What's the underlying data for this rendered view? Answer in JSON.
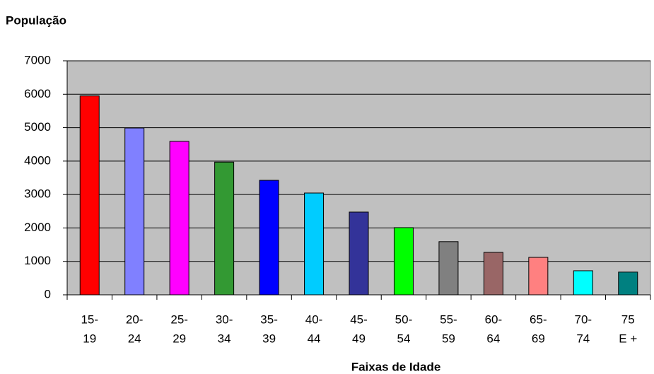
{
  "chart_data": {
    "type": "bar",
    "title": "População",
    "x_label": "Faixas de Idade",
    "categories": [
      [
        "15-",
        "19"
      ],
      [
        "20-",
        "24"
      ],
      [
        "25-",
        "29"
      ],
      [
        "30-",
        "34"
      ],
      [
        "35-",
        "39"
      ],
      [
        "40-",
        "44"
      ],
      [
        "45-",
        "49"
      ],
      [
        "50-",
        "54"
      ],
      [
        "55-",
        "59"
      ],
      [
        "60-",
        "64"
      ],
      [
        "65-",
        "69"
      ],
      [
        "70-",
        "74"
      ],
      [
        "75",
        "E +"
      ]
    ],
    "values": [
      5950,
      4990,
      4590,
      3970,
      3425,
      3045,
      2475,
      2010,
      1590,
      1270,
      1120,
      720,
      680
    ],
    "colors": [
      "#ff0000",
      "#8080ff",
      "#ff00ff",
      "#339933",
      "#0000ff",
      "#00ccff",
      "#333399",
      "#00ff00",
      "#808080",
      "#996666",
      "#ff8080",
      "#00ffff",
      "#008080"
    ],
    "ylim": [
      0,
      7000
    ],
    "yticks": [
      0,
      1000,
      2000,
      3000,
      4000,
      5000,
      6000,
      7000
    ],
    "grid": true
  }
}
